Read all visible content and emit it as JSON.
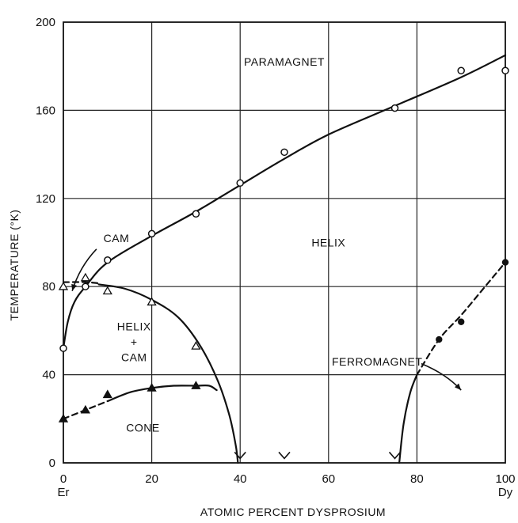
{
  "chart_data": {
    "type": "scatter",
    "title": "",
    "xlabel": "ATOMIC PERCENT DYSPROSIUM",
    "ylabel": "TEMPERATURE (°K)",
    "xlim": [
      0,
      100
    ],
    "ylim": [
      0,
      200
    ],
    "x_ticks": [
      0,
      20,
      40,
      60,
      80,
      100
    ],
    "y_ticks": [
      0,
      40,
      80,
      120,
      160,
      200
    ],
    "x_end_labels": {
      "left": "Er",
      "right": "Dy"
    },
    "grid": true,
    "series": [
      {
        "marker": "open-circle",
        "points": [
          [
            0,
            52
          ],
          [
            5,
            80
          ],
          [
            10,
            92
          ],
          [
            20,
            104
          ],
          [
            30,
            113
          ],
          [
            40,
            127
          ],
          [
            50,
            141
          ],
          [
            75,
            161
          ],
          [
            90,
            178
          ],
          [
            100,
            178
          ]
        ]
      },
      {
        "marker": "open-triangle",
        "points": [
          [
            0,
            80
          ],
          [
            5,
            84
          ],
          [
            10,
            78
          ],
          [
            20,
            73
          ],
          [
            30,
            53
          ]
        ]
      },
      {
        "marker": "filled-triangle",
        "points": [
          [
            0,
            20
          ],
          [
            5,
            24
          ],
          [
            10,
            31
          ],
          [
            20,
            34
          ],
          [
            30,
            35
          ]
        ]
      },
      {
        "marker": "filled-circle",
        "points": [
          [
            85,
            56
          ],
          [
            90,
            64
          ],
          [
            100,
            91
          ]
        ]
      },
      {
        "marker": "v-mark",
        "points": [
          [
            40,
            2
          ],
          [
            50,
            2
          ],
          [
            75,
            2
          ]
        ]
      }
    ],
    "curves": [
      {
        "name": "paramagnet-helix-boundary",
        "style": "solid",
        "points": [
          [
            0,
            52
          ],
          [
            1,
            64
          ],
          [
            2.5,
            73
          ],
          [
            5,
            80
          ],
          [
            10,
            91
          ],
          [
            20,
            103
          ],
          [
            30,
            114
          ],
          [
            40,
            126
          ],
          [
            50,
            138
          ],
          [
            60,
            149
          ],
          [
            75,
            162
          ],
          [
            90,
            175
          ],
          [
            100,
            185
          ]
        ]
      },
      {
        "name": "cam-boundary",
        "style": "dashed",
        "points": [
          [
            0,
            82
          ],
          [
            5,
            82
          ],
          [
            8,
            81.5
          ]
        ]
      },
      {
        "name": "helix-cam-boundary",
        "style": "solid",
        "points": [
          [
            8,
            81
          ],
          [
            14,
            79
          ],
          [
            20,
            74
          ],
          [
            26,
            66
          ],
          [
            31,
            53
          ],
          [
            35,
            37
          ],
          [
            37.5,
            22
          ],
          [
            39,
            8
          ],
          [
            39.5,
            0
          ]
        ]
      },
      {
        "name": "cone-boundary-dashed",
        "style": "dashed",
        "points": [
          [
            0,
            20
          ],
          [
            5,
            24
          ],
          [
            10,
            28
          ]
        ]
      },
      {
        "name": "cone-boundary",
        "style": "solid",
        "points": [
          [
            10,
            28
          ],
          [
            15,
            32
          ],
          [
            20,
            34
          ],
          [
            25,
            35
          ],
          [
            30,
            35
          ],
          [
            33,
            35
          ],
          [
            34.7,
            33
          ]
        ]
      },
      {
        "name": "ferromagnet-boundary-solid",
        "style": "solid",
        "points": [
          [
            76,
            0
          ],
          [
            77,
            18
          ],
          [
            78.5,
            32
          ],
          [
            80,
            40
          ]
        ]
      },
      {
        "name": "ferromagnet-boundary-dashed",
        "style": "dashed",
        "points": [
          [
            80,
            40
          ],
          [
            85,
            56
          ],
          [
            90,
            67
          ],
          [
            95,
            79
          ],
          [
            100,
            91
          ]
        ]
      }
    ],
    "annotations": [
      {
        "text": "PARAMAGNET",
        "x": 50,
        "y": 182
      },
      {
        "text": "HELIX",
        "x": 60,
        "y": 100
      },
      {
        "text": "CAM",
        "x": 12,
        "y": 102
      },
      {
        "text": "HELIX",
        "x": 16,
        "y": 62
      },
      {
        "text": "+",
        "x": 16,
        "y": 55
      },
      {
        "text": "CAM",
        "x": 16,
        "y": 48
      },
      {
        "text": "CONE",
        "x": 18,
        "y": 16
      },
      {
        "text": "FERROMAGNET",
        "x": 71,
        "y": 46
      }
    ],
    "arrows": [
      {
        "from": [
          7.5,
          97
        ],
        "to": [
          2,
          78
        ]
      },
      {
        "from": [
          81,
          45
        ],
        "to": [
          90,
          33
        ]
      }
    ]
  }
}
